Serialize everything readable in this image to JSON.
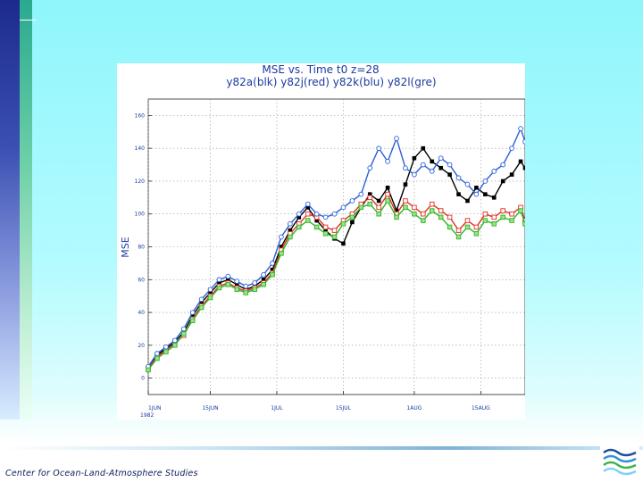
{
  "footer": {
    "organization": "Center for Ocean-Land-Atmosphere Studies"
  },
  "logo": {
    "icon": "waves-logo-icon",
    "colors": [
      "#1a4fa0",
      "#2f8fd8",
      "#3cb44a",
      "#7fd3f0"
    ]
  },
  "chart_data": {
    "type": "line",
    "title": "MSE vs. Time t0 z=28",
    "subtitle": "y82a(blk) y82j(red) y82k(blu) y82l(gre)",
    "ylabel": "MSE",
    "xlabel": "",
    "ylim": [
      -10,
      170
    ],
    "yticks": [
      0,
      20,
      40,
      60,
      80,
      100,
      120,
      140,
      160
    ],
    "ytick_labels": [
      "0",
      "20",
      "40",
      "60",
      "80",
      "100",
      "120",
      "140",
      "160"
    ],
    "xlim": [
      0,
      85
    ],
    "xticks": [
      0,
      14,
      29,
      44,
      60,
      75
    ],
    "xtick_labels": [
      "1JUN",
      "15JUN",
      "1JUL",
      "15JUL",
      "1AUG",
      "15AUG"
    ],
    "x_sublabel": "1982",
    "grid": true,
    "series": [
      {
        "name": "y82a",
        "color": "#000000",
        "marker": "square-filled",
        "x": [
          0,
          2,
          4,
          6,
          8,
          10,
          12,
          14,
          16,
          18,
          20,
          22,
          24,
          26,
          28,
          30,
          32,
          34,
          36,
          38,
          40,
          42,
          44,
          46,
          48,
          50,
          52,
          54,
          56,
          58,
          60,
          62,
          64,
          66,
          68,
          70,
          72,
          74,
          76,
          78,
          80,
          82,
          84,
          85
        ],
        "y": [
          6,
          14,
          18,
          22,
          28,
          38,
          46,
          52,
          58,
          60,
          57,
          54,
          56,
          60,
          66,
          80,
          90,
          98,
          104,
          96,
          90,
          85,
          82,
          95,
          104,
          112,
          108,
          116,
          102,
          118,
          134,
          140,
          132,
          128,
          124,
          112,
          108,
          116,
          112,
          110,
          120,
          124,
          132,
          128
        ]
      },
      {
        "name": "y82j",
        "color": "#e03020",
        "marker": "square-open",
        "x": [
          0,
          2,
          4,
          6,
          8,
          10,
          12,
          14,
          16,
          18,
          20,
          22,
          24,
          26,
          28,
          30,
          32,
          34,
          36,
          38,
          40,
          42,
          44,
          46,
          48,
          50,
          52,
          54,
          56,
          58,
          60,
          62,
          64,
          66,
          68,
          70,
          72,
          74,
          76,
          78,
          80,
          82,
          84,
          85
        ],
        "y": [
          6,
          13,
          17,
          21,
          26,
          36,
          44,
          50,
          56,
          58,
          55,
          53,
          55,
          58,
          64,
          78,
          88,
          94,
          100,
          98,
          92,
          90,
          96,
          100,
          106,
          110,
          104,
          112,
          100,
          108,
          104,
          100,
          106,
          102,
          98,
          90,
          96,
          92,
          100,
          98,
          102,
          100,
          104,
          96
        ]
      },
      {
        "name": "y82k",
        "color": "#2a5fd8",
        "marker": "circle-open",
        "x": [
          0,
          2,
          4,
          6,
          8,
          10,
          12,
          14,
          16,
          18,
          20,
          22,
          24,
          26,
          28,
          30,
          32,
          34,
          36,
          38,
          40,
          42,
          44,
          46,
          48,
          50,
          52,
          54,
          56,
          58,
          60,
          62,
          64,
          66,
          68,
          70,
          72,
          74,
          76,
          78,
          80,
          82,
          84,
          85
        ],
        "y": [
          7,
          15,
          19,
          23,
          30,
          40,
          48,
          54,
          60,
          62,
          59,
          56,
          58,
          63,
          70,
          86,
          94,
          100,
          106,
          100,
          98,
          100,
          104,
          108,
          112,
          128,
          140,
          132,
          146,
          128,
          124,
          130,
          126,
          134,
          130,
          122,
          118,
          112,
          120,
          126,
          130,
          140,
          152,
          144
        ]
      },
      {
        "name": "y82l",
        "color": "#2fb42a",
        "marker": "square-open-filled",
        "x": [
          0,
          2,
          4,
          6,
          8,
          10,
          12,
          14,
          16,
          18,
          20,
          22,
          24,
          26,
          28,
          30,
          32,
          34,
          36,
          38,
          40,
          42,
          44,
          46,
          48,
          50,
          52,
          54,
          56,
          58,
          60,
          62,
          64,
          66,
          68,
          70,
          72,
          74,
          76,
          78,
          80,
          82,
          84,
          85
        ],
        "y": [
          5,
          12,
          16,
          20,
          27,
          35,
          43,
          49,
          55,
          57,
          54,
          52,
          54,
          57,
          63,
          76,
          86,
          92,
          96,
          92,
          88,
          86,
          94,
          98,
          104,
          106,
          100,
          108,
          98,
          104,
          100,
          96,
          102,
          98,
          92,
          86,
          92,
          88,
          96,
          94,
          98,
          96,
          102,
          94
        ]
      }
    ]
  }
}
